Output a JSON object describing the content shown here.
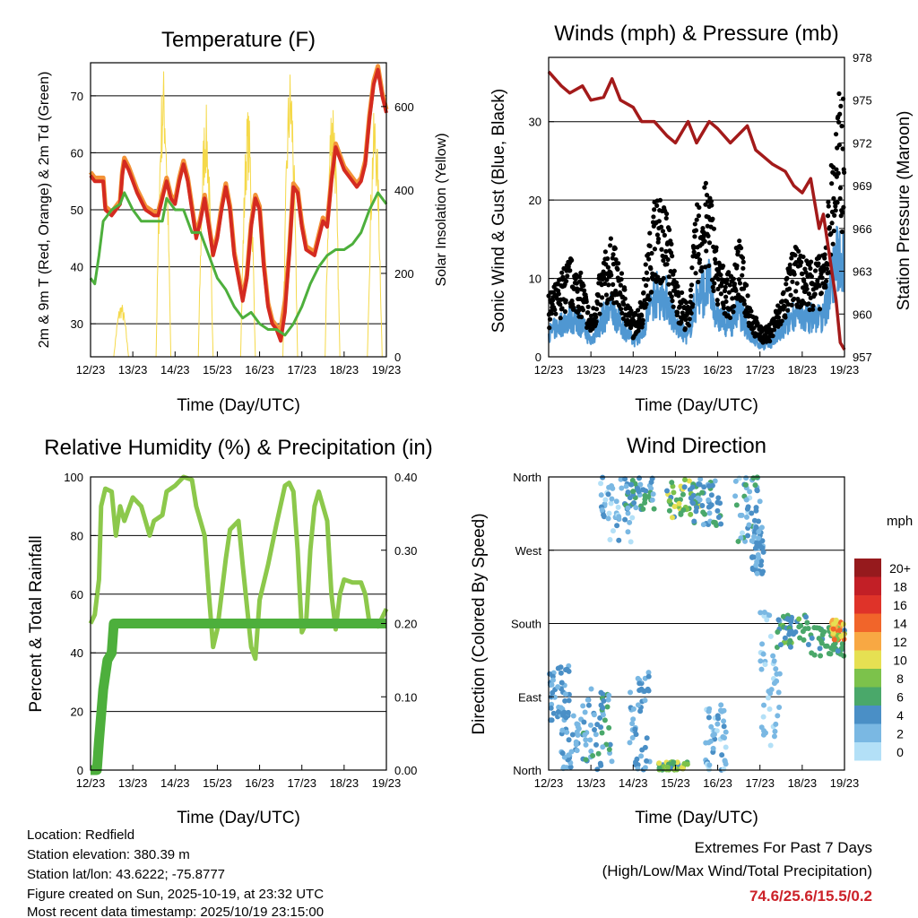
{
  "info": {
    "location": "Location: Redfield",
    "elevation": "Station elevation: 380.39 m",
    "latlon": "Station lat/lon: 43.6222; -75.8777",
    "created": "Figure created on Sun, 2025-10-19, at 23:32 UTC",
    "recent": "Most recent data timestamp: 2025/10/19 23:15:00"
  },
  "extremes": {
    "title": "Extremes For Past 7 Days",
    "subtitle": "(High/Low/Max Wind/Total Precipitation)",
    "values": "74.6/25.6/15.5/0.2",
    "color": "#cc2229"
  },
  "chart_data": [
    {
      "type": "line",
      "title": "Temperature (F)",
      "xlabel": "Time (Day/UTC)",
      "ylabel": "2m & 9m T (Red, Orange) & 2m Td (Green)",
      "y2label": "Solar Insolation (Yellow)",
      "xticks": [
        "12/23",
        "13/23",
        "14/23",
        "15/23",
        "16/23",
        "17/23",
        "18/23",
        "19/23"
      ],
      "xlim": [
        0,
        7
      ],
      "ylim": [
        24.2,
        75.8
      ],
      "yticks": [
        30,
        40,
        50,
        60,
        70
      ],
      "y2lim": [
        0,
        705
      ],
      "y2ticks": [
        0,
        200,
        400,
        600
      ],
      "series": [
        {
          "name": "2m T",
          "color": "#d42a20",
          "points": [
            [
              0,
              56
            ],
            [
              0.1,
              55
            ],
            [
              0.3,
              55
            ],
            [
              0.35,
              50
            ],
            [
              0.5,
              49
            ],
            [
              0.7,
              51
            ],
            [
              0.75,
              56
            ],
            [
              0.8,
              58.5
            ],
            [
              0.9,
              57
            ],
            [
              1,
              55
            ],
            [
              1.1,
              53
            ],
            [
              1.3,
              50
            ],
            [
              1.5,
              49
            ],
            [
              1.6,
              49
            ],
            [
              1.7,
              52
            ],
            [
              1.8,
              55
            ],
            [
              1.9,
              52
            ],
            [
              2,
              51
            ],
            [
              2.1,
              55
            ],
            [
              2.2,
              58
            ],
            [
              2.3,
              55
            ],
            [
              2.4,
              50
            ],
            [
              2.5,
              45
            ],
            [
              2.6,
              48
            ],
            [
              2.7,
              52
            ],
            [
              2.8,
              47
            ],
            [
              2.9,
              42
            ],
            [
              3,
              45
            ],
            [
              3.1,
              50
            ],
            [
              3.2,
              54
            ],
            [
              3.3,
              50
            ],
            [
              3.4,
              42
            ],
            [
              3.5,
              38
            ],
            [
              3.6,
              34
            ],
            [
              3.7,
              38
            ],
            [
              3.8,
              47
            ],
            [
              3.9,
              52
            ],
            [
              4,
              50
            ],
            [
              4.1,
              40
            ],
            [
              4.2,
              33
            ],
            [
              4.3,
              30
            ],
            [
              4.4,
              29
            ],
            [
              4.5,
              27
            ],
            [
              4.6,
              32
            ],
            [
              4.7,
              42
            ],
            [
              4.8,
              54
            ],
            [
              4.9,
              53
            ],
            [
              5,
              47
            ],
            [
              5.1,
              43
            ],
            [
              5.3,
              42
            ],
            [
              5.4,
              45
            ],
            [
              5.5,
              48
            ],
            [
              5.6,
              47
            ],
            [
              5.7,
              55
            ],
            [
              5.8,
              61
            ],
            [
              5.9,
              59
            ],
            [
              6,
              57
            ],
            [
              6.1,
              56
            ],
            [
              6.2,
              55
            ],
            [
              6.3,
              54
            ],
            [
              6.4,
              55
            ],
            [
              6.5,
              58
            ],
            [
              6.6,
              66
            ],
            [
              6.7,
              72
            ],
            [
              6.8,
              74.6
            ],
            [
              6.9,
              70
            ],
            [
              7,
              67
            ]
          ]
        },
        {
          "name": "2m Td",
          "color": "#4daf3c",
          "points": [
            [
              0,
              38
            ],
            [
              0.1,
              37
            ],
            [
              0.2,
              42
            ],
            [
              0.3,
              48
            ],
            [
              0.5,
              50
            ],
            [
              0.7,
              51
            ],
            [
              0.8,
              53
            ],
            [
              1,
              50
            ],
            [
              1.2,
              48
            ],
            [
              1.5,
              48
            ],
            [
              1.7,
              48
            ],
            [
              1.8,
              52
            ],
            [
              2,
              50
            ],
            [
              2.2,
              50
            ],
            [
              2.4,
              46
            ],
            [
              2.6,
              46
            ],
            [
              2.8,
              42
            ],
            [
              3,
              38
            ],
            [
              3.2,
              36
            ],
            [
              3.4,
              33
            ],
            [
              3.6,
              31
            ],
            [
              3.8,
              32
            ],
            [
              4,
              30
            ],
            [
              4.2,
              29
            ],
            [
              4.4,
              29
            ],
            [
              4.6,
              28
            ],
            [
              4.8,
              30
            ],
            [
              5,
              33
            ],
            [
              5.2,
              37
            ],
            [
              5.4,
              40
            ],
            [
              5.6,
              42
            ],
            [
              5.8,
              43
            ],
            [
              6,
              43
            ],
            [
              6.2,
              44
            ],
            [
              6.4,
              46
            ],
            [
              6.6,
              50
            ],
            [
              6.8,
              53
            ],
            [
              7,
              51
            ]
          ]
        },
        {
          "name": "Solar",
          "color": "#f5d94a",
          "daily_peaks": [
            130,
            700,
            610,
            600,
            700,
            650,
            600
          ]
        }
      ]
    },
    {
      "type": "scatter",
      "title": "Winds (mph) & Pressure (mb)",
      "xlabel": "Time (Day/UTC)",
      "ylabel": "Sonic Wind & Gust (Blue, Black)",
      "y2label": "Station Pressure (Maroon)",
      "xticks": [
        "12/23",
        "13/23",
        "14/23",
        "15/23",
        "16/23",
        "17/23",
        "18/23",
        "19/23"
      ],
      "xlim": [
        0,
        7
      ],
      "ylim": [
        0,
        38.2
      ],
      "yticks": [
        0,
        10,
        20,
        30
      ],
      "y2lim": [
        957,
        978
      ],
      "y2ticks": [
        957,
        960,
        963,
        966,
        969,
        972,
        975,
        978
      ],
      "gust_mean": [
        [
          0,
          6
        ],
        [
          0.5,
          10
        ],
        [
          0.8,
          8
        ],
        [
          1,
          4
        ],
        [
          1.3,
          10
        ],
        [
          1.5,
          12
        ],
        [
          1.8,
          7
        ],
        [
          2,
          4
        ],
        [
          2.2,
          6
        ],
        [
          2.5,
          16
        ],
        [
          2.8,
          15
        ],
        [
          3,
          8
        ],
        [
          3.3,
          5
        ],
        [
          3.5,
          15
        ],
        [
          3.8,
          18
        ],
        [
          4,
          10
        ],
        [
          4.3,
          8
        ],
        [
          4.5,
          12
        ],
        [
          4.8,
          5
        ],
        [
          5,
          3
        ],
        [
          5.2,
          3
        ],
        [
          5.5,
          6
        ],
        [
          5.8,
          11
        ],
        [
          6,
          10
        ],
        [
          6.3,
          10
        ],
        [
          6.5,
          10
        ],
        [
          6.7,
          20
        ],
        [
          6.9,
          27
        ],
        [
          7,
          25
        ]
      ],
      "pressure": [
        [
          0,
          977
        ],
        [
          0.3,
          976
        ],
        [
          0.5,
          975.5
        ],
        [
          0.8,
          976
        ],
        [
          1,
          975
        ],
        [
          1.3,
          975.2
        ],
        [
          1.5,
          976.5
        ],
        [
          1.7,
          975
        ],
        [
          2,
          974.5
        ],
        [
          2.2,
          973.5
        ],
        [
          2.5,
          973.5
        ],
        [
          2.8,
          972.5
        ],
        [
          3,
          972
        ],
        [
          3.3,
          973.5
        ],
        [
          3.5,
          972
        ],
        [
          3.8,
          973.5
        ],
        [
          4,
          973
        ],
        [
          4.3,
          972
        ],
        [
          4.7,
          973.2
        ],
        [
          4.9,
          971.5
        ],
        [
          5.1,
          971
        ],
        [
          5.3,
          970.5
        ],
        [
          5.6,
          970
        ],
        [
          5.8,
          969
        ],
        [
          6,
          968.5
        ],
        [
          6.2,
          969.5
        ],
        [
          6.4,
          966
        ],
        [
          6.5,
          967
        ],
        [
          6.7,
          963
        ],
        [
          6.8,
          961
        ],
        [
          6.9,
          958
        ],
        [
          7,
          957.5
        ]
      ],
      "colors": {
        "wind": "#4f97d2",
        "gust": "#000000",
        "pressure": "#a31a1a"
      }
    },
    {
      "type": "line",
      "title": "Relative Humidity (%) & Precipitation (in)",
      "xlabel": "Time (Day/UTC)",
      "ylabel": "Percent & Total Rainfall",
      "xticks": [
        "12/23",
        "13/23",
        "14/23",
        "15/23",
        "16/23",
        "17/23",
        "18/23",
        "19/23"
      ],
      "xlim": [
        0,
        7
      ],
      "ylim": [
        0,
        100
      ],
      "yticks": [
        0,
        20,
        40,
        60,
        80,
        100
      ],
      "y2lim": [
        0,
        0.4
      ],
      "y2ticks": [
        "0.00",
        "0.10",
        "0.20",
        "0.30",
        "0.40"
      ],
      "rh": [
        [
          0,
          50
        ],
        [
          0.1,
          53
        ],
        [
          0.2,
          65
        ],
        [
          0.25,
          90
        ],
        [
          0.35,
          96
        ],
        [
          0.5,
          95
        ],
        [
          0.6,
          80
        ],
        [
          0.7,
          90
        ],
        [
          0.8,
          85
        ],
        [
          1,
          93
        ],
        [
          1.2,
          90
        ],
        [
          1.4,
          80
        ],
        [
          1.5,
          85
        ],
        [
          1.7,
          87
        ],
        [
          1.8,
          95
        ],
        [
          2,
          97
        ],
        [
          2.2,
          100
        ],
        [
          2.4,
          99
        ],
        [
          2.5,
          90
        ],
        [
          2.7,
          80
        ],
        [
          2.8,
          60
        ],
        [
          2.9,
          42
        ],
        [
          3,
          48
        ],
        [
          3.2,
          72
        ],
        [
          3.3,
          82
        ],
        [
          3.5,
          85
        ],
        [
          3.6,
          70
        ],
        [
          3.8,
          42
        ],
        [
          3.9,
          38
        ],
        [
          4,
          58
        ],
        [
          4.2,
          70
        ],
        [
          4.4,
          84
        ],
        [
          4.6,
          97
        ],
        [
          4.7,
          98
        ],
        [
          4.8,
          95
        ],
        [
          4.9,
          75
        ],
        [
          5,
          47
        ],
        [
          5.1,
          50
        ],
        [
          5.2,
          75
        ],
        [
          5.3,
          90
        ],
        [
          5.4,
          95
        ],
        [
          5.6,
          85
        ],
        [
          5.7,
          60
        ],
        [
          5.8,
          48
        ],
        [
          5.9,
          60
        ],
        [
          6,
          65
        ],
        [
          6.2,
          64
        ],
        [
          6.4,
          64
        ],
        [
          6.5,
          60
        ],
        [
          6.6,
          50
        ],
        [
          6.8,
          49
        ],
        [
          7,
          55
        ]
      ],
      "precip": [
        [
          0,
          0
        ],
        [
          0.15,
          0
        ],
        [
          0.2,
          0.04
        ],
        [
          0.3,
          0.11
        ],
        [
          0.4,
          0.15
        ],
        [
          0.5,
          0.16
        ],
        [
          0.55,
          0.2
        ],
        [
          7,
          0.2
        ]
      ],
      "colors": {
        "rh": "#8cc84b",
        "precip": "#4daf3c"
      }
    },
    {
      "type": "scatter",
      "title": "Wind Direction",
      "xlabel": "Time (Day/UTC)",
      "ylabel": "Direction (Colored By Speed)",
      "xticks": [
        "12/23",
        "13/23",
        "14/23",
        "15/23",
        "16/23",
        "17/23",
        "18/23",
        "19/23"
      ],
      "xlim": [
        0,
        7
      ],
      "ylim": [
        0,
        360
      ],
      "yticks": [
        "North",
        "East",
        "South",
        "West",
        "North"
      ],
      "legend": {
        "title": "mph",
        "labels": [
          "0",
          "2",
          "4",
          "6",
          "8",
          "10",
          "12",
          "14",
          "16",
          "18",
          "20+"
        ],
        "colors": [
          "#b3e0f7",
          "#7ab8e3",
          "#4a8fc6",
          "#4aa86a",
          "#7cc24b",
          "#e6e052",
          "#f8a843",
          "#f1652a",
          "#df3329",
          "#c21f26",
          "#961a1d"
        ],
        "placement": "right"
      },
      "clusters": [
        [
          0,
          0.5,
          60,
          130,
          2,
          5
        ],
        [
          0.3,
          1,
          0,
          80,
          1,
          4
        ],
        [
          0.8,
          1.5,
          0,
          100,
          1,
          6
        ],
        [
          1.2,
          2,
          280,
          360,
          0,
          4
        ],
        [
          1.9,
          2.4,
          0,
          120,
          1,
          5
        ],
        [
          1.8,
          2.5,
          320,
          360,
          2,
          7
        ],
        [
          2.6,
          3.3,
          0,
          10,
          4,
          10
        ],
        [
          2.8,
          3.6,
          310,
          360,
          4,
          10
        ],
        [
          3.4,
          4.1,
          300,
          360,
          2,
          6
        ],
        [
          3.7,
          4.2,
          0,
          80,
          0,
          4
        ],
        [
          4.4,
          5,
          280,
          360,
          0,
          6
        ],
        [
          4.8,
          5.1,
          240,
          300,
          2,
          5
        ],
        [
          5,
          5.5,
          30,
          200,
          0,
          3
        ],
        [
          5.4,
          6.2,
          150,
          190,
          3,
          8
        ],
        [
          6.2,
          7,
          140,
          175,
          4,
          7
        ],
        [
          6.7,
          7,
          160,
          185,
          8,
          15
        ]
      ]
    }
  ]
}
